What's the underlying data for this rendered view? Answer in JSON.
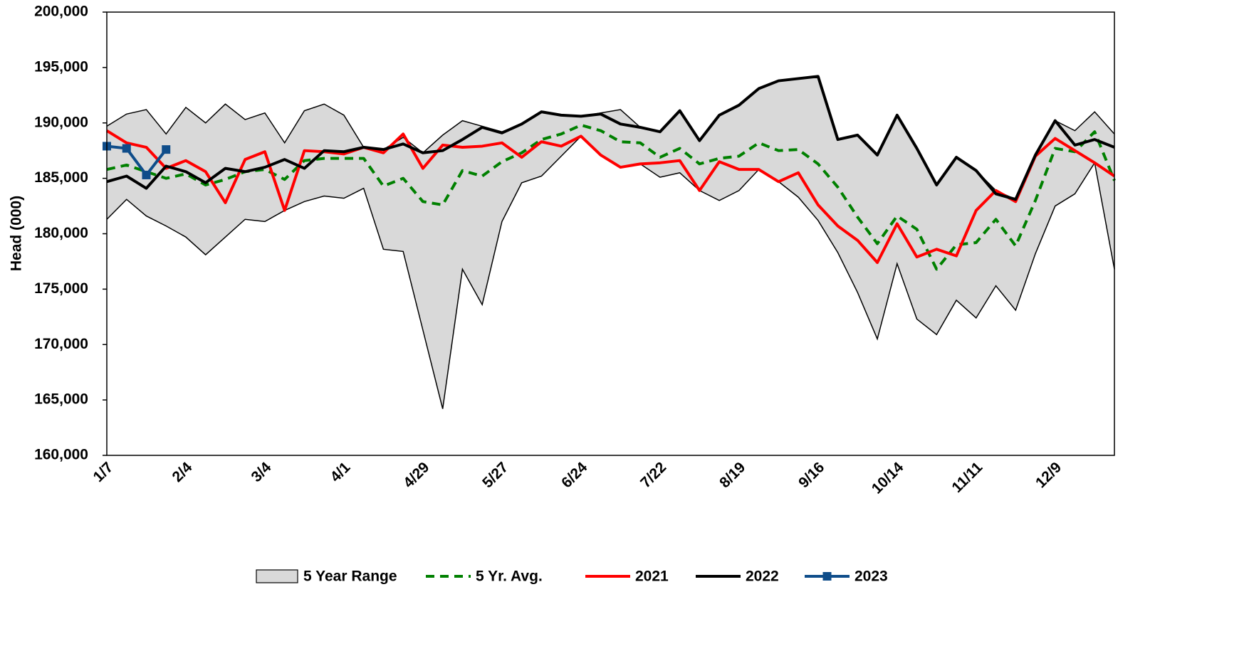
{
  "chart_data": {
    "type": "line",
    "y_label": "Head (000)",
    "categories": [
      "1/7",
      null,
      null,
      null,
      "2/4",
      null,
      null,
      null,
      "3/4",
      null,
      null,
      null,
      "4/1",
      null,
      null,
      null,
      "4/29",
      null,
      null,
      null,
      "5/27",
      null,
      null,
      null,
      "6/24",
      null,
      null,
      null,
      "7/22",
      null,
      null,
      null,
      "8/19",
      null,
      null,
      null,
      "9/16",
      null,
      null,
      null,
      "10/14",
      null,
      null,
      null,
      "11/11",
      null,
      null,
      null,
      "12/9",
      null,
      null,
      null
    ],
    "ylim": [
      160000,
      200000
    ],
    "yticks": [
      {
        "value": 160000,
        "label": "160,000"
      },
      {
        "value": 165000,
        "label": "165,000"
      },
      {
        "value": 170000,
        "label": "170,000"
      },
      {
        "value": 175000,
        "label": "175,000"
      },
      {
        "value": 180000,
        "label": "180,000"
      },
      {
        "value": 185000,
        "label": "185,000"
      },
      {
        "value": 190000,
        "label": "190,000"
      },
      {
        "value": 195000,
        "label": "195,000"
      },
      {
        "value": 200000,
        "label": "200,000"
      }
    ],
    "legend": "bottom",
    "series": [
      {
        "name": "5 Year Range",
        "style": "range",
        "color": "#d9d9d9",
        "high": [
          189700,
          190800,
          191200,
          189000,
          191400,
          190000,
          191700,
          190300,
          190900,
          188200,
          191100,
          191700,
          190700,
          187800,
          187600,
          188700,
          187300,
          188900,
          190200,
          189700,
          189200,
          189900,
          191000,
          190700,
          190600,
          190900,
          191200,
          189600,
          189200,
          191100,
          188400,
          190700,
          191600,
          193100,
          193800,
          194000,
          194200,
          188500,
          188900,
          187100,
          190700,
          187700,
          184400,
          186900,
          185700,
          183900,
          183100,
          187100,
          190200,
          189300,
          191000,
          189000
        ],
        "low": [
          181300,
          183100,
          181600,
          180700,
          179700,
          178100,
          179700,
          181300,
          181100,
          182100,
          182900,
          183400,
          183200,
          184100,
          178600,
          178400,
          171300,
          164200,
          176800,
          173600,
          181100,
          184600,
          185200,
          187000,
          188800,
          187100,
          186000,
          186300,
          185100,
          185500,
          183900,
          183000,
          183900,
          185800,
          184700,
          183300,
          181200,
          178300,
          174700,
          170500,
          177300,
          172300,
          170900,
          174000,
          172400,
          175300,
          173100,
          178200,
          182500,
          183600,
          186400,
          176800
        ]
      },
      {
        "name": "5 Yr. Avg.",
        "style": "dashed",
        "color": "#008000",
        "values": [
          185800,
          186200,
          185600,
          185000,
          185400,
          184400,
          184900,
          185600,
          185800,
          184900,
          186600,
          186800,
          186800,
          186800,
          184300,
          185000,
          182900,
          182600,
          185700,
          185200,
          186500,
          187300,
          188500,
          189000,
          189800,
          189300,
          188300,
          188200,
          186900,
          187700,
          186300,
          186800,
          187000,
          188200,
          187500,
          187600,
          186300,
          184200,
          181500,
          179100,
          181600,
          180400,
          176800,
          179000,
          179200,
          181300,
          178900,
          183000,
          187700,
          187400,
          189200,
          184800
        ]
      },
      {
        "name": "2021",
        "style": "solid",
        "color": "#ff0000",
        "values": [
          189300,
          188200,
          187800,
          185900,
          186600,
          185600,
          182800,
          186700,
          187400,
          182100,
          187500,
          187400,
          187200,
          187800,
          187300,
          189000,
          185900,
          188000,
          187800,
          187900,
          188200,
          186900,
          188300,
          187900,
          188800,
          187100,
          186000,
          186300,
          186400,
          186600,
          183900,
          186500,
          185800,
          185800,
          184700,
          185500,
          182600,
          180700,
          179400,
          177400,
          180900,
          177900,
          178600,
          178000,
          182100,
          183900,
          182900,
          187000,
          188600,
          187500,
          186400,
          185200
        ]
      },
      {
        "name": "2022",
        "style": "solid",
        "color": "#000000",
        "values": [
          184700,
          185200,
          184100,
          186100,
          185600,
          184600,
          185900,
          185600,
          186000,
          186700,
          185900,
          187500,
          187400,
          187800,
          187600,
          188100,
          187300,
          187500,
          188500,
          189600,
          189100,
          189900,
          191000,
          190700,
          190600,
          190800,
          189900,
          189600,
          189200,
          191100,
          188400,
          190700,
          191600,
          193100,
          193800,
          194000,
          194200,
          188500,
          188900,
          187100,
          190700,
          187700,
          184400,
          186900,
          185700,
          183600,
          183100,
          187100,
          190200,
          188000,
          188500,
          187800
        ]
      },
      {
        "name": "2023",
        "style": "marker",
        "color": "#0f4d8a",
        "values": [
          187900,
          187700,
          185300,
          187600,
          null,
          null,
          null,
          null,
          null,
          null,
          null,
          null,
          null,
          null,
          null,
          null,
          null,
          null,
          null,
          null,
          null,
          null,
          null,
          null,
          null,
          null,
          null,
          null,
          null,
          null,
          null,
          null,
          null,
          null,
          null,
          null,
          null,
          null,
          null,
          null,
          null,
          null,
          null,
          null,
          null,
          null,
          null,
          null,
          null,
          null,
          null,
          null
        ]
      }
    ]
  }
}
